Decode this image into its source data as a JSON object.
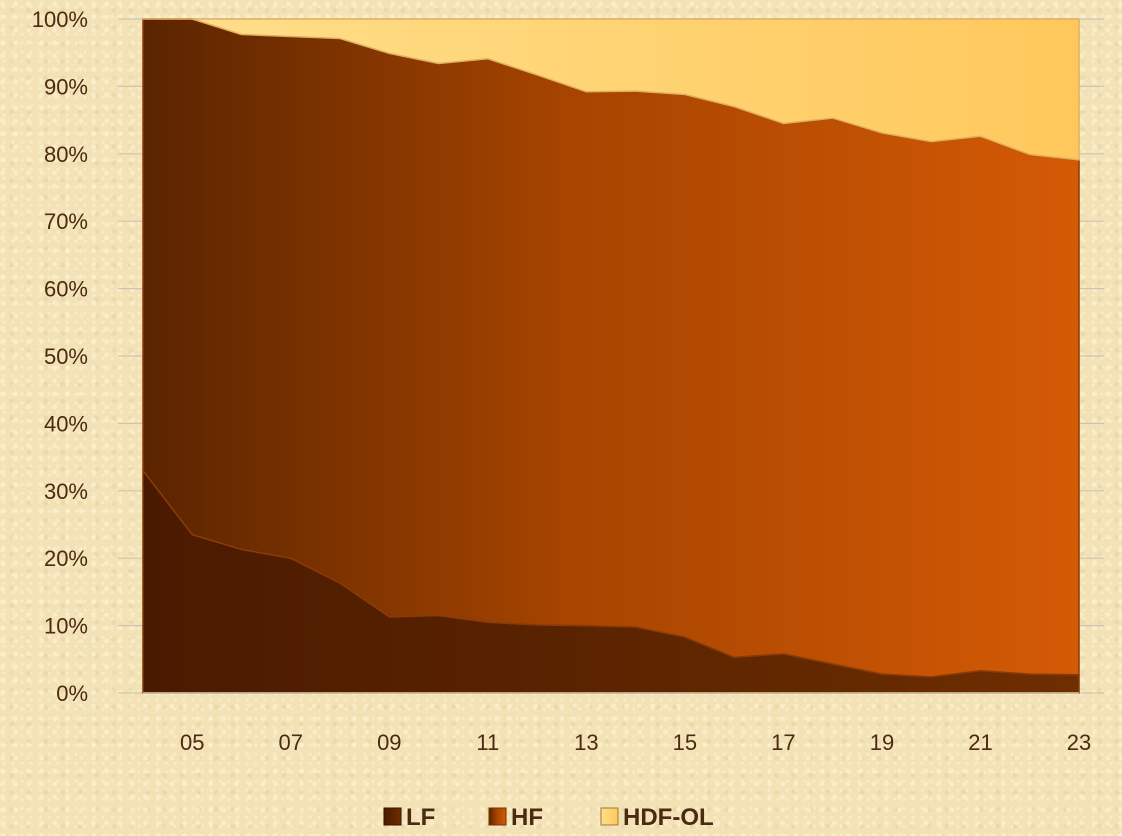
{
  "chart_data": {
    "type": "area",
    "stacked": "percent",
    "title": "",
    "xlabel": "",
    "ylabel": "",
    "x": [
      4,
      5,
      6,
      7,
      8,
      9,
      10,
      11,
      12,
      13,
      14,
      15,
      16,
      17,
      18,
      19,
      20,
      21,
      22,
      23
    ],
    "x_tick_labels": [
      "05",
      "07",
      "09",
      "11",
      "13",
      "15",
      "17",
      "19",
      "21",
      "23"
    ],
    "x_tick_values": [
      5,
      7,
      9,
      11,
      13,
      15,
      17,
      19,
      21,
      23
    ],
    "y_ticks": [
      0,
      10,
      20,
      30,
      40,
      50,
      60,
      70,
      80,
      90,
      100
    ],
    "y_tick_labels": [
      "0%",
      "10%",
      "20%",
      "30%",
      "40%",
      "50%",
      "60%",
      "70%",
      "80%",
      "90%",
      "100%"
    ],
    "ylim": [
      0,
      100
    ],
    "xlim": [
      4,
      23
    ],
    "grid": "horizontal",
    "legend_position": "bottom",
    "series": [
      {
        "name": "LF",
        "color": "#5a2300",
        "values": [
          33,
          23.5,
          21.3,
          20,
          16.3,
          11.3,
          11.5,
          10.5,
          10.1,
          10,
          9.8,
          8.3,
          5.3,
          5.8,
          4.3,
          2.8,
          2.4,
          3.3,
          2.8,
          2.7
        ]
      },
      {
        "name": "HF",
        "color": "#c65009",
        "values": [
          67,
          76.5,
          76.4,
          77.4,
          80.8,
          83.6,
          81.9,
          83.6,
          81.6,
          79.2,
          79.5,
          80.5,
          81.7,
          78.7,
          81,
          80.3,
          79.4,
          79.3,
          77.1,
          76.4
        ]
      },
      {
        "name": "HDF-OL",
        "color": "#ffcf68",
        "values": [
          0,
          0,
          2.3,
          2.6,
          2.9,
          5.1,
          6.6,
          5.9,
          8.3,
          10.8,
          10.7,
          11.2,
          13,
          15.5,
          14.7,
          16.9,
          18.2,
          17.4,
          20.1,
          20.9
        ]
      }
    ]
  }
}
